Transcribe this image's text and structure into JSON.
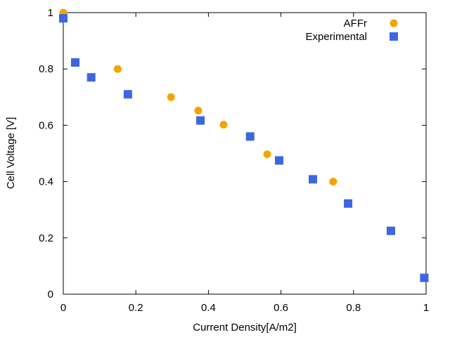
{
  "chart_data": {
    "type": "scatter",
    "xlabel": "Current Density[A/m2]",
    "ylabel": "Cell Voltage [V]",
    "xlim": [
      0,
      1
    ],
    "ylim": [
      0,
      1
    ],
    "x_ticks": [
      "0",
      "0.2",
      "0.4",
      "0.6",
      "0.8",
      "1"
    ],
    "y_ticks": [
      "0",
      "0.2",
      "0.4",
      "0.6",
      "0.8",
      "1"
    ],
    "grid": false,
    "legend_position": "top-right",
    "series": [
      {
        "name": "AFFr",
        "marker": "circle",
        "color": "#f5a300",
        "points": [
          [
            0.0,
            1.0
          ],
          [
            0.15,
            0.8
          ],
          [
            0.297,
            0.7
          ],
          [
            0.372,
            0.652
          ],
          [
            0.442,
            0.602
          ],
          [
            0.562,
            0.497
          ],
          [
            0.744,
            0.4
          ]
        ]
      },
      {
        "name": "Experimental",
        "marker": "square",
        "color": "#3d67e0",
        "points": [
          [
            0.0,
            0.98
          ],
          [
            0.033,
            0.823
          ],
          [
            0.077,
            0.77
          ],
          [
            0.178,
            0.71
          ],
          [
            0.378,
            0.617
          ],
          [
            0.515,
            0.56
          ],
          [
            0.595,
            0.475
          ],
          [
            0.688,
            0.408
          ],
          [
            0.785,
            0.322
          ],
          [
            0.903,
            0.225
          ],
          [
            0.995,
            0.058
          ]
        ]
      }
    ]
  }
}
